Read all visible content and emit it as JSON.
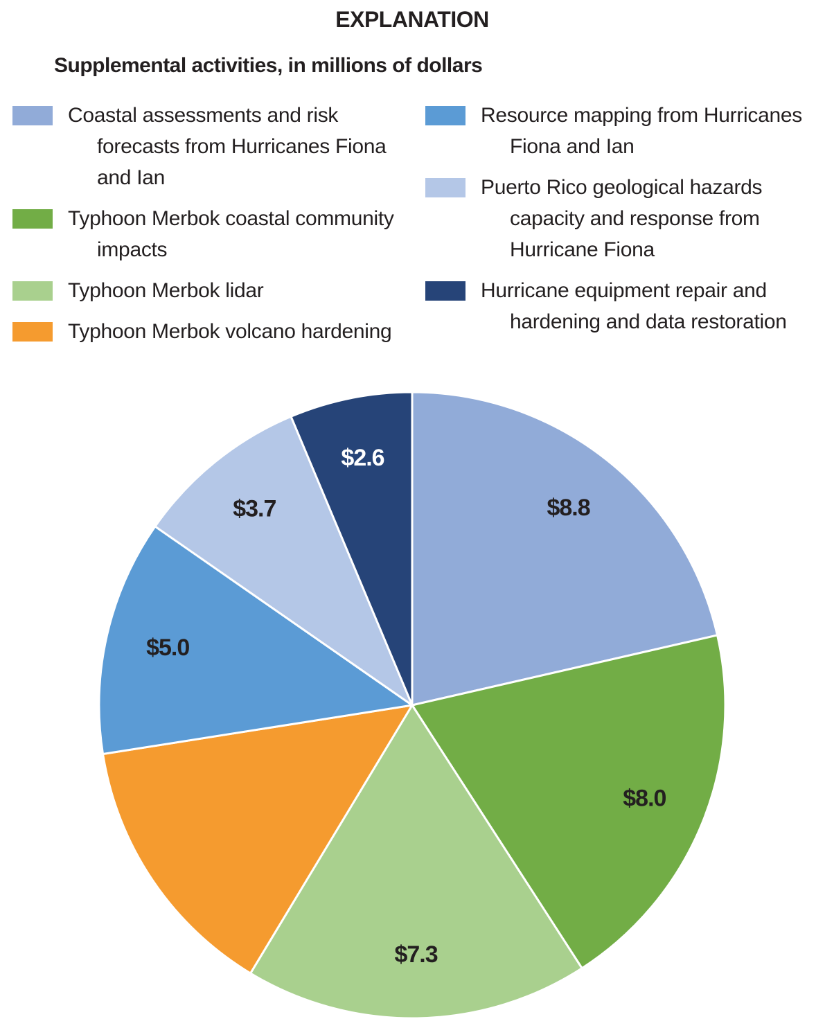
{
  "chart_data": {
    "type": "pie",
    "title": "EXPLANATION",
    "subtitle": "Supplemental activities, in millions of dollars",
    "categories": [
      "Coastal assessments and risk forecasts from Hurricanes Fiona and Ian",
      "Typhoon Merbok coastal community impacts",
      "Typhoon Merbok lidar",
      "Typhoon Merbok volcano hardening",
      "Resource mapping from Hurricanes Fiona and Ian",
      "Puerto Rico geological hazards capacity and response from Hurricane Fiona",
      "Hurricane equipment repair and hardening and data restoration"
    ],
    "values": [
      8.8,
      8.0,
      7.3,
      5.7,
      5.0,
      3.7,
      2.6
    ],
    "value_labels": [
      "$8.8",
      "$8.0",
      "$7.3",
      null,
      "$5.0",
      "$3.7",
      "$2.6"
    ],
    "colors": [
      "#91abd8",
      "#72ad46",
      "#a9d08e",
      "#f59b2f",
      "#5b9bd5",
      "#b4c7e7",
      "#264478"
    ]
  }
}
